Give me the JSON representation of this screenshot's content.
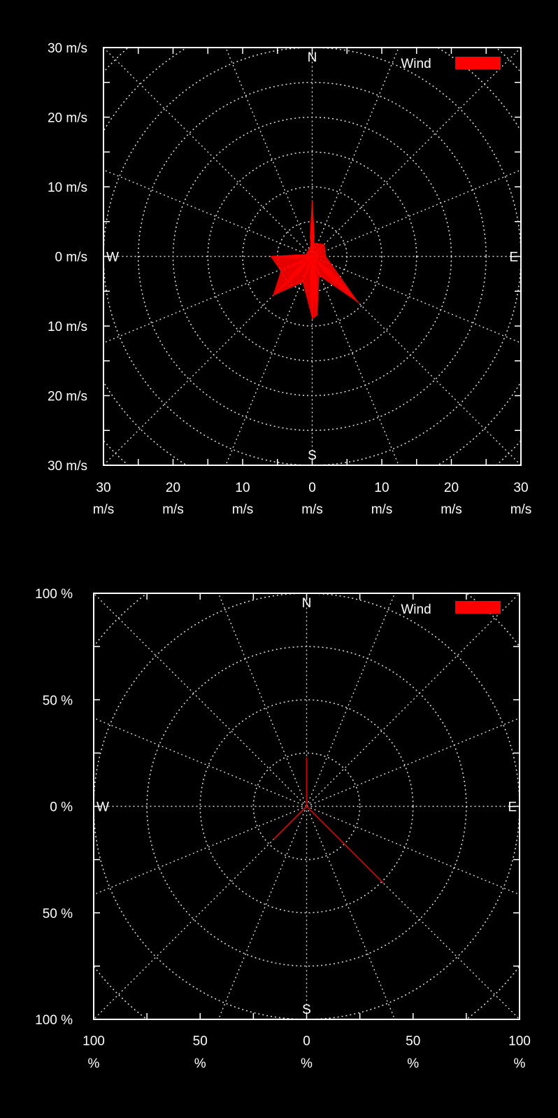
{
  "chart_data": [
    {
      "type": "polar-wind-rose",
      "unit": "m/s",
      "legend": {
        "label": "Wind",
        "position": "top-right"
      },
      "compass": {
        "north": "N",
        "south": "S",
        "east": "E",
        "west": "W"
      },
      "y_ticks": [
        {
          "value": 30,
          "label": "30 m/s"
        },
        {
          "value": 20,
          "label": "20 m/s"
        },
        {
          "value": 10,
          "label": "10 m/s"
        },
        {
          "value": 0,
          "label": "0 m/s"
        },
        {
          "value": -10,
          "label": "10 m/s"
        },
        {
          "value": -20,
          "label": "20 m/s"
        },
        {
          "value": -30,
          "label": "30 m/s"
        }
      ],
      "x_ticks": [
        {
          "value": -30,
          "num": "30",
          "unit": "m/s"
        },
        {
          "value": -20,
          "num": "20",
          "unit": "m/s"
        },
        {
          "value": -10,
          "num": "10",
          "unit": "m/s"
        },
        {
          "value": 0,
          "num": "0",
          "unit": "m/s"
        },
        {
          "value": 10,
          "num": "10",
          "unit": "m/s"
        },
        {
          "value": 20,
          "num": "20",
          "unit": "m/s"
        },
        {
          "value": 30,
          "num": "30",
          "unit": "m/s"
        }
      ],
      "range": 30,
      "ring_step": 5,
      "spoke_step_deg": 22.5,
      "grid": true,
      "directions_deg": [
        0,
        5,
        45,
        90,
        135,
        160,
        175,
        180,
        200,
        225,
        245,
        270,
        290,
        350
      ],
      "values": [
        8,
        2,
        2.5,
        2,
        9.5,
        3,
        8.5,
        9,
        4,
        8,
        5,
        6,
        1,
        1.5
      ],
      "legend_color": "#ff0000",
      "series_color": "#ff0000"
    },
    {
      "type": "polar-wind-rose",
      "unit": "%",
      "legend": {
        "label": "Wind",
        "position": "top-right"
      },
      "compass": {
        "north": "N",
        "south": "S",
        "east": "E",
        "west": "W"
      },
      "y_ticks": [
        {
          "value": 100,
          "label": "100 %"
        },
        {
          "value": 50,
          "label": "50 %"
        },
        {
          "value": 0,
          "label": "0 %"
        },
        {
          "value": -50,
          "label": "50 %"
        },
        {
          "value": -100,
          "label": "100 %"
        }
      ],
      "x_ticks": [
        {
          "value": -100,
          "num": "100",
          "unit": "%"
        },
        {
          "value": -50,
          "num": "50",
          "unit": "%"
        },
        {
          "value": 0,
          "num": "0",
          "unit": "%"
        },
        {
          "value": 50,
          "num": "50",
          "unit": "%"
        },
        {
          "value": 100,
          "num": "100",
          "unit": "%"
        }
      ],
      "range": 100,
      "ring_step": 25,
      "spoke_step_deg": 22.5,
      "grid": true,
      "rays": [
        {
          "dir_deg": 0,
          "value": 23
        },
        {
          "dir_deg": 135,
          "value": 51
        },
        {
          "dir_deg": 225,
          "value": 22
        }
      ],
      "legend_color": "#ff0000",
      "series_color": "#cc0000"
    }
  ]
}
